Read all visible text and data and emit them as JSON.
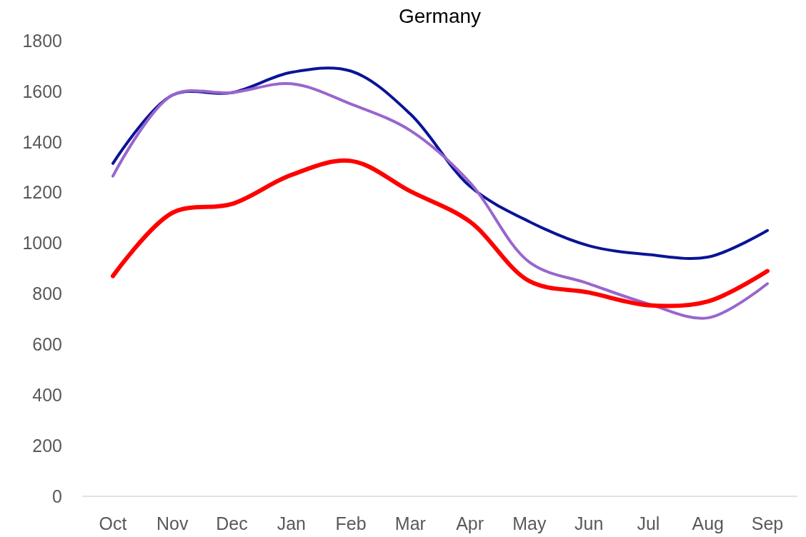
{
  "chart_data": {
    "type": "line",
    "title": "Germany",
    "categories": [
      "Oct",
      "Nov",
      "Dec",
      "Jan",
      "Feb",
      "Mar",
      "Apr",
      "May",
      "Jun",
      "Jul",
      "Aug",
      "Sep"
    ],
    "series": [
      {
        "color": "#0a1496",
        "values": [
          1315,
          1585,
          1595,
          1675,
          1680,
          1510,
          1225,
          1085,
          990,
          955,
          945,
          1050
        ]
      },
      {
        "color": "#9966cc",
        "values": [
          1265,
          1585,
          1595,
          1630,
          1550,
          1445,
          1240,
          925,
          840,
          760,
          705,
          840
        ]
      },
      {
        "color": "#ff0000",
        "values": [
          870,
          1120,
          1155,
          1270,
          1325,
          1205,
          1085,
          850,
          805,
          755,
          770,
          890
        ]
      }
    ],
    "ylim": [
      0,
      1800
    ],
    "yticks": [
      0,
      200,
      400,
      600,
      800,
      1000,
      1200,
      1400,
      1600,
      1800
    ],
    "grid": false,
    "marker": "none",
    "line_style": "solid"
  }
}
